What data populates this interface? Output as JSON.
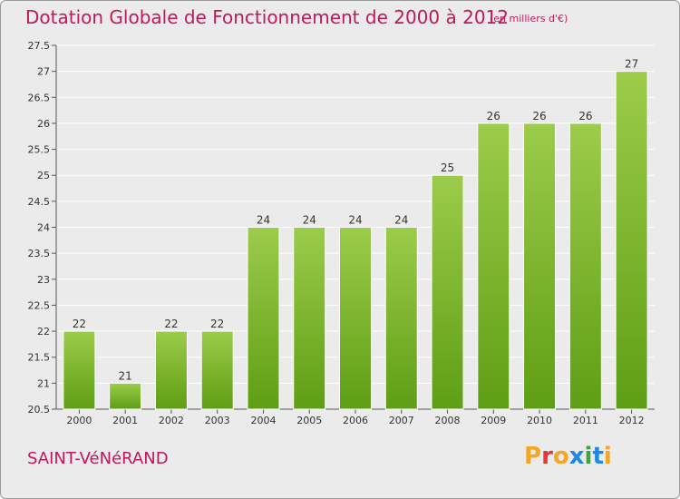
{
  "header": {
    "title": "Dotation Globale de Fonctionnement de 2000 à 2012",
    "subtitle": "(en milliers d'€)"
  },
  "footer": {
    "commune": "SAINT-VéNéRAND",
    "logo_text": "Proxiti",
    "logo_colors": [
      "#f5a623",
      "#e53935",
      "#f5a623",
      "#1e88e5",
      "#43a047",
      "#1e88e5",
      "#f5a623"
    ]
  },
  "colors": {
    "title": "#c2185b",
    "bar_light": "#9ccc4a",
    "bar_dark": "#5e9e14",
    "grid": "#ffffff",
    "background": "#ebebeb"
  },
  "chart_data": {
    "type": "bar",
    "categories": [
      "2000",
      "2001",
      "2002",
      "2003",
      "2004",
      "2005",
      "2006",
      "2007",
      "2008",
      "2009",
      "2010",
      "2011",
      "2012"
    ],
    "values": [
      22,
      21,
      22,
      22,
      24,
      24,
      24,
      24,
      25,
      26,
      26,
      26,
      27
    ],
    "ylim": [
      20.5,
      27.5
    ],
    "yticks": [
      20.5,
      21,
      21.5,
      22,
      22.5,
      23,
      23.5,
      24,
      24.5,
      25,
      25.5,
      26,
      26.5,
      27,
      27.5
    ],
    "ytick_labels": [
      "20.5",
      "21",
      "21.5",
      "22",
      "22.5",
      "23",
      "23.5",
      "24",
      "24.5",
      "25",
      "25.5",
      "26",
      "26.5",
      "27",
      "27.5"
    ],
    "grid": true,
    "title": "Dotation Globale de Fonctionnement de 2000 à 2012",
    "xlabel": "",
    "ylabel": ""
  }
}
